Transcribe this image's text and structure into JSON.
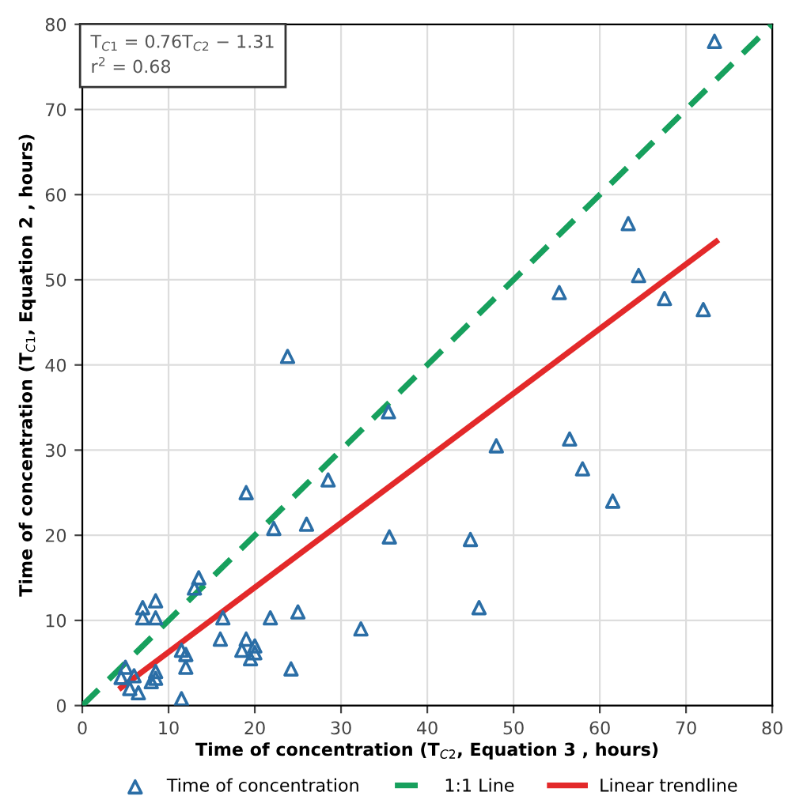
{
  "chart_data": {
    "type": "scatter",
    "xlabel": "Time of concentration (T$_{C2}$, Equation 3 , hours)",
    "ylabel": "Time of concentration (T$_{C1}$, Equation 2 , hours)",
    "annotations": [
      "T$_{C1}$ = 0.76T$_{C2}$ − 1.31\nr$^{2}$ = 0.68"
    ],
    "xlim": [
      0,
      80
    ],
    "ylim": [
      0,
      80
    ],
    "xticks": [
      0,
      10,
      20,
      30,
      40,
      50,
      60,
      70,
      80
    ],
    "yticks": [
      0,
      10,
      20,
      30,
      40,
      50,
      60,
      70,
      80
    ],
    "grid": true,
    "legend": "bottom",
    "series": [
      {
        "name": "Time of concentration",
        "marker": "triangle",
        "color": "#2b6ea6",
        "x": [
          4.5,
          5,
          5.5,
          6,
          6.5,
          7,
          7,
          8,
          8.5,
          8.5,
          8.5,
          8.5,
          11.5,
          11.5,
          12,
          12,
          13,
          13.5,
          16,
          16.3,
          18.5,
          19,
          19,
          19.5,
          20,
          20,
          21.8,
          22.2,
          23.8,
          24.2,
          25,
          26,
          28.5,
          32.3,
          35.5,
          35.6,
          45,
          46,
          48,
          55.3,
          56.5,
          58,
          61.5,
          63.3,
          64.5,
          67.5,
          72,
          73.3
        ],
        "values": [
          3.3,
          4.5,
          2,
          3.5,
          1.5,
          10.3,
          11.5,
          2.8,
          12.3,
          10.3,
          4,
          3.2,
          0.8,
          6.5,
          6,
          4.5,
          13.8,
          15,
          7.8,
          10.3,
          6.5,
          25,
          7.8,
          5.5,
          7,
          6.2,
          10.3,
          20.8,
          41,
          4.3,
          11,
          21.3,
          26.5,
          9,
          34.5,
          19.8,
          19.5,
          11.5,
          30.5,
          48.5,
          31.3,
          27.8,
          24,
          56.6,
          50.5,
          47.8,
          46.5,
          78
        ]
      },
      {
        "name": "1:1 Line",
        "type": "line",
        "line_style": "dashed",
        "color": "#17a05d",
        "x": [
          0,
          80
        ],
        "values": [
          0,
          80
        ]
      },
      {
        "name": "Linear trendline",
        "type": "line",
        "line_style": "solid",
        "color": "#e3292a",
        "x": [
          4.5,
          73.5
        ],
        "values": [
          2.1,
          54.5
        ]
      }
    ]
  }
}
